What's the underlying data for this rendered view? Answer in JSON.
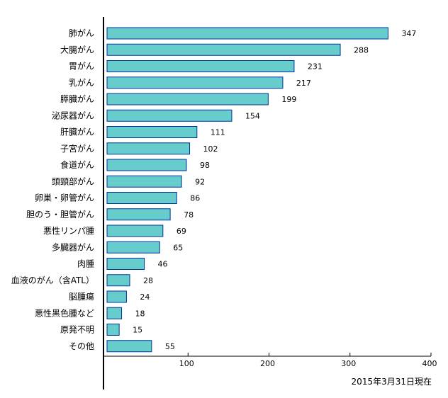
{
  "chart_data": {
    "type": "bar",
    "orientation": "horizontal",
    "categories": [
      "肺がん",
      "大腸がん",
      "胃がん",
      "乳がん",
      "膵臓がん",
      "泌尿器がん",
      "肝臓がん",
      "子宮がん",
      "食道がん",
      "頭頸部がん",
      "卵巣・卵管がん",
      "胆のう・胆管がん",
      "悪性リンパ腫",
      "多臓器がん",
      "肉腫",
      "血液のがん（含ATL）",
      "脳腫瘍",
      "悪性黒色腫など",
      "原発不明",
      "その他"
    ],
    "values": [
      347,
      288,
      231,
      217,
      199,
      154,
      111,
      102,
      98,
      92,
      86,
      78,
      69,
      65,
      46,
      28,
      24,
      18,
      15,
      55
    ],
    "xlim": [
      0,
      400
    ],
    "xticks": [
      100,
      200,
      300,
      400
    ],
    "grid": false,
    "bar_color": "#66CCCC",
    "bar_edge_color": "#003399"
  },
  "note": "2015年3月31日現在"
}
